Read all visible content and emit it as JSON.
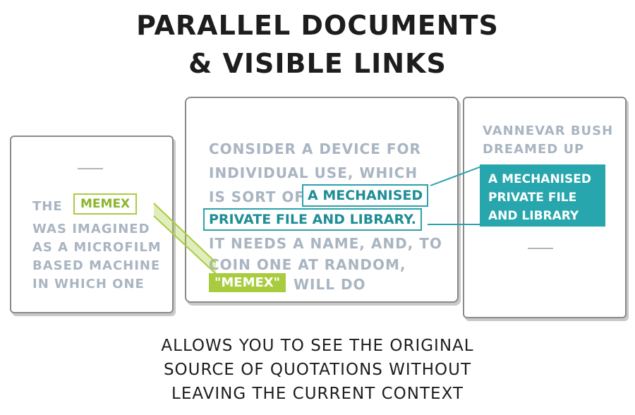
{
  "title": {
    "line1": "PARALLEL DOCUMENTS",
    "line2": "& VISIBLE LINKS"
  },
  "left_doc": {
    "word_before": "THE",
    "highlight": "MEMEX",
    "lines": [
      "WAS IMAGINED",
      "AS A MICROFILM",
      "BASED MACHINE",
      "IN WHICH ONE"
    ]
  },
  "middle_doc": {
    "lines": [
      "CONSIDER A DEVICE FOR",
      "INDIVIDUAL USE, WHICH",
      "IS SORT OF"
    ],
    "highlight_part1": "A MECHANISED",
    "highlight_part2": "PRIVATE FILE AND LIBRARY.",
    "lines_after": [
      "IT NEEDS A NAME, AND, TO",
      "COIN ONE AT RANDOM,"
    ],
    "quote_highlight": "\"MEMEX\"",
    "quote_after": "WILL DO"
  },
  "right_doc": {
    "lines": [
      "VANNEVAR BUSH",
      "DREAMED UP"
    ],
    "highlight_lines": [
      "A MECHANISED",
      "PRIVATE FILE",
      "AND LIBRARY"
    ]
  },
  "caption": {
    "line1": "ALLOWS YOU TO SEE THE ORIGINAL",
    "line2": "SOURCE OF QUOTATIONS WITHOUT",
    "line3": "LEAVING THE CURRENT CONTEXT"
  },
  "colors": {
    "green": "#a9cc3f",
    "teal": "#27a6ad",
    "doc_text": "#a9b5c2",
    "ink": "#1d1d1d"
  }
}
